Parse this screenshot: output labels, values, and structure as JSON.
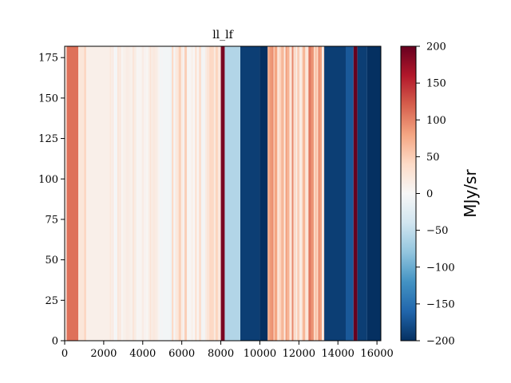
{
  "chart_data": {
    "type": "heatmap",
    "title": "ll_lf",
    "xlabel": "",
    "ylabel": "",
    "xlim": [
      0,
      16200
    ],
    "ylim": [
      0,
      182
    ],
    "x_ticks": [
      0,
      2000,
      4000,
      6000,
      8000,
      10000,
      12000,
      14000,
      16000
    ],
    "y_ticks": [
      0,
      25,
      50,
      75,
      100,
      125,
      150,
      175
    ],
    "colorbar": {
      "label": "MJy/sr",
      "vmin": -200,
      "vmax": 200,
      "ticks": [
        -200,
        -150,
        -100,
        -50,
        0,
        50,
        100,
        150,
        200
      ],
      "colormap": "RdBu_r",
      "colors": [
        "#053061",
        "#2166ac",
        "#4393c3",
        "#92c5de",
        "#d1e5f0",
        "#f7f7f7",
        "#fddbc7",
        "#f4a582",
        "#d6604d",
        "#b2182b",
        "#67001f"
      ]
    },
    "column_bands": [
      {
        "x0": 0,
        "x1": 100,
        "value": 15
      },
      {
        "x0": 100,
        "x1": 700,
        "value": 110
      },
      {
        "x0": 700,
        "x1": 1000,
        "value": 25
      },
      {
        "x0": 1000,
        "x1": 1100,
        "value": 45
      },
      {
        "x0": 1100,
        "x1": 2300,
        "value": 12
      },
      {
        "x0": 2300,
        "x1": 5000,
        "value": 20,
        "striped": true
      },
      {
        "x0": 5000,
        "x1": 5400,
        "value": -5
      },
      {
        "x0": 5400,
        "x1": 8000,
        "value": 30,
        "striped": true
      },
      {
        "x0": 8000,
        "x1": 8200,
        "value": 190
      },
      {
        "x0": 8200,
        "x1": 9000,
        "value": -60
      },
      {
        "x0": 9000,
        "x1": 10000,
        "value": -190
      },
      {
        "x0": 10000,
        "x1": 10400,
        "value": -200
      },
      {
        "x0": 10400,
        "x1": 13300,
        "value": 60,
        "striped": true
      },
      {
        "x0": 13300,
        "x1": 14400,
        "value": -190
      },
      {
        "x0": 14400,
        "x1": 14800,
        "value": -170
      },
      {
        "x0": 14800,
        "x1": 15000,
        "value": 200
      },
      {
        "x0": 15000,
        "x1": 15500,
        "value": -190
      },
      {
        "x0": 15500,
        "x1": 16200,
        "value": -200
      }
    ]
  }
}
